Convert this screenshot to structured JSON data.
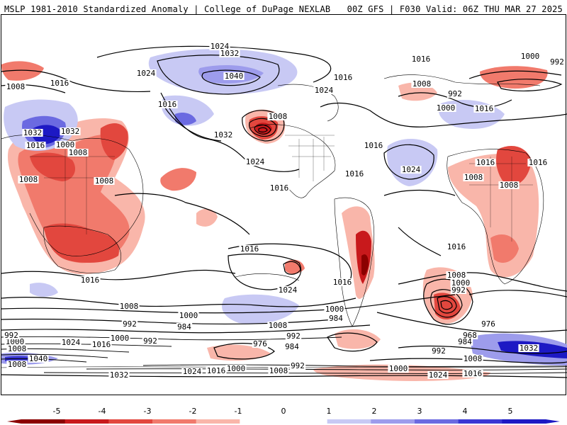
{
  "header": {
    "left_title": "MSLP 1981-2010 Standardized Anomaly | College of DuPage NEXLAB",
    "right_title": "00Z GFS | F030 Valid: 06Z THU MAR 27 2025"
  },
  "colors": {
    "neg5": "#8b0000",
    "neg4": "#c8191c",
    "neg3": "#e2473e",
    "neg2": "#f17a6c",
    "neg1": "#f9b6aa",
    "zero": "#ffffff",
    "pos1": "#c8c9f4",
    "pos2": "#9d9cec",
    "pos3": "#6b6ae1",
    "pos4": "#3a37d4",
    "pos5": "#1d19c4"
  },
  "colorbar": {
    "ticks": [
      "-5",
      "-4",
      "-3",
      "-2",
      "-1",
      "0",
      "1",
      "2",
      "3",
      "4",
      "5"
    ]
  },
  "isobar_labels": [
    {
      "text": "1024",
      "id": "l1"
    },
    {
      "text": "1032",
      "id": "l2"
    },
    {
      "text": "1040",
      "id": "l3"
    },
    {
      "text": "1024",
      "id": "l4"
    },
    {
      "text": "1016",
      "id": "l5"
    },
    {
      "text": "1008",
      "id": "l6"
    },
    {
      "text": "1016",
      "id": "l7"
    },
    {
      "text": "1024",
      "id": "l8"
    },
    {
      "text": "1016",
      "id": "l9"
    },
    {
      "text": "1000",
      "id": "l10"
    },
    {
      "text": "992",
      "id": "l11"
    },
    {
      "text": "1016",
      "id": "l12"
    },
    {
      "text": "1008",
      "id": "l13"
    },
    {
      "text": "992",
      "id": "l14"
    },
    {
      "text": "1000",
      "id": "l15"
    },
    {
      "text": "1016",
      "id": "l16"
    },
    {
      "text": "1032",
      "id": "l17"
    },
    {
      "text": "1032",
      "id": "l18"
    },
    {
      "text": "1016",
      "id": "l19"
    },
    {
      "text": "1000",
      "id": "l20"
    },
    {
      "text": "1008",
      "id": "l21"
    },
    {
      "text": "1008",
      "id": "l22"
    },
    {
      "text": "1032",
      "id": "l23"
    },
    {
      "text": "1024",
      "id": "l24"
    },
    {
      "text": "1016",
      "id": "l25"
    },
    {
      "text": "1016",
      "id": "l26"
    },
    {
      "text": "1016",
      "id": "l27"
    },
    {
      "text": "1024",
      "id": "l28"
    },
    {
      "text": "1008",
      "id": "l29"
    },
    {
      "text": "1008",
      "id": "l30"
    },
    {
      "text": "1008",
      "id": "l31"
    },
    {
      "text": "1008",
      "id": "l32"
    },
    {
      "text": "1016",
      "id": "l33"
    },
    {
      "text": "1016",
      "id": "l34"
    },
    {
      "text": "1016",
      "id": "l35"
    },
    {
      "text": "1016",
      "id": "l36"
    },
    {
      "text": "1024",
      "id": "l37"
    },
    {
      "text": "1016",
      "id": "l38"
    },
    {
      "text": "1016",
      "id": "l39"
    },
    {
      "text": "1008",
      "id": "l40"
    },
    {
      "text": "1000",
      "id": "l41"
    },
    {
      "text": "992",
      "id": "l42"
    },
    {
      "text": "1008",
      "id": "l43"
    },
    {
      "text": "1000",
      "id": "l44"
    },
    {
      "text": "992",
      "id": "l45"
    },
    {
      "text": "984",
      "id": "l46"
    },
    {
      "text": "1000",
      "id": "l47"
    },
    {
      "text": "976",
      "id": "l48"
    },
    {
      "text": "968",
      "id": "l49"
    },
    {
      "text": "984",
      "id": "l50"
    },
    {
      "text": "992",
      "id": "l51"
    },
    {
      "text": "1008",
      "id": "l52"
    },
    {
      "text": "976",
      "id": "l53"
    },
    {
      "text": "984",
      "id": "l54"
    },
    {
      "text": "992",
      "id": "l55"
    },
    {
      "text": "1008",
      "id": "l56"
    },
    {
      "text": "1000",
      "id": "l57"
    },
    {
      "text": "992",
      "id": "l58"
    },
    {
      "text": "984",
      "id": "l59"
    },
    {
      "text": "1024",
      "id": "l60"
    },
    {
      "text": "1016",
      "id": "l61"
    },
    {
      "text": "1008",
      "id": "l62"
    },
    {
      "text": "1040",
      "id": "l63"
    },
    {
      "text": "1032",
      "id": "l64"
    },
    {
      "text": "1024",
      "id": "l65"
    },
    {
      "text": "1016",
      "id": "l66"
    },
    {
      "text": "1000",
      "id": "l67"
    },
    {
      "text": "1008",
      "id": "l68"
    },
    {
      "text": "992",
      "id": "l69"
    },
    {
      "text": "1000",
      "id": "l70"
    },
    {
      "text": "1024",
      "id": "l71"
    },
    {
      "text": "1016",
      "id": "l72"
    },
    {
      "text": "1008",
      "id": "l73"
    },
    {
      "text": "1032",
      "id": "l74"
    },
    {
      "text": "1000",
      "id": "l75"
    },
    {
      "text": "984",
      "id": "l76"
    },
    {
      "text": "992",
      "id": "l77"
    }
  ]
}
